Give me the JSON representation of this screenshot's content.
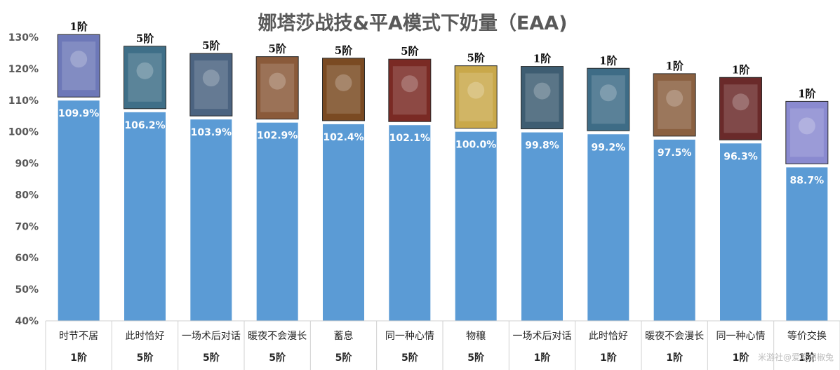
{
  "watermark": "米游社@爱吃胡椒兔",
  "chart_data": {
    "type": "bar",
    "title": "娜塔莎战技&平A模式下奶量（EAA)",
    "ylim": [
      40,
      130
    ],
    "yticks": [
      "40%",
      "50%",
      "60%",
      "70%",
      "80%",
      "90%",
      "100%",
      "110%",
      "120%",
      "130%"
    ],
    "grid": false,
    "bar_color": "#5b9bd5",
    "categories": [
      "时节不居",
      "此时恰好",
      "一场术后对话",
      "暖夜不会漫长",
      "蓄息",
      "同一种心情",
      "物穰",
      "一场术后对话",
      "此时恰好",
      "暖夜不会漫长",
      "同一种心情",
      "等价交换"
    ],
    "ranks": [
      "1阶",
      "5阶",
      "5阶",
      "5阶",
      "5阶",
      "5阶",
      "5阶",
      "1阶",
      "1阶",
      "1阶",
      "1阶",
      "1阶"
    ],
    "values": [
      109.9,
      106.2,
      103.9,
      102.9,
      102.4,
      102.1,
      100.0,
      99.8,
      99.2,
      97.5,
      96.3,
      88.7
    ],
    "value_labels": [
      "109.9%",
      "106.2%",
      "103.9%",
      "102.9%",
      "102.4%",
      "102.1%",
      "100.0%",
      "99.8%",
      "99.2%",
      "97.5%",
      "96.3%",
      "88.7%"
    ],
    "card_labels": [
      "1阶",
      "5阶",
      "5阶",
      "5阶",
      "5阶",
      "5阶",
      "5阶",
      "1阶",
      "1阶",
      "1阶",
      "1阶",
      "1阶"
    ],
    "card_colors": [
      "#6d78b8",
      "#3f6f88",
      "#4b6380",
      "#8a5a3a",
      "#7a4a22",
      "#7a2a24",
      "#c9a84a",
      "#3e5d72",
      "#3e6c86",
      "#8a6040",
      "#6a2a2a",
      "#8a8ad0"
    ]
  }
}
